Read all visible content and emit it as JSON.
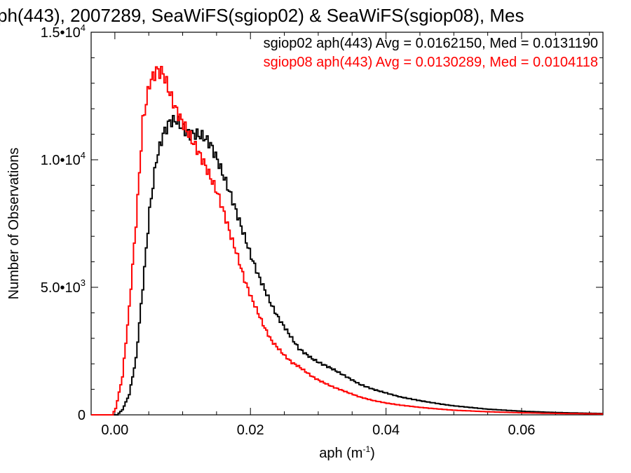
{
  "chart_data": {
    "type": "line",
    "title": "ph(443), 2007289, SeaWiFS(sgiop02) & SeaWiFS(sgiop08), Mes",
    "xlabel_base": "aph (m",
    "xlabel_sup": "-1",
    "xlabel_tail": ")",
    "ylabel": "Number of Observations",
    "xlim": [
      -0.0035,
      0.072
    ],
    "ylim": [
      0,
      15000
    ],
    "x_ticks": [
      0.0,
      0.02,
      0.04,
      0.06
    ],
    "x_tick_labels": [
      "0.00",
      "0.02",
      "0.04",
      "0.06"
    ],
    "y_tick_labels": [
      {
        "value": 0,
        "base": "0",
        "exp": ""
      },
      {
        "value": 5000,
        "base": "5.0•10",
        "exp": "3"
      },
      {
        "value": 10000,
        "base": "1.0•10",
        "exp": "4"
      },
      {
        "value": 15000,
        "base": "1.5•10",
        "exp": "4"
      }
    ],
    "grid": false,
    "legend_position": "top-right",
    "series": [
      {
        "name": "sgiop02 aph(443) Avg = 0.0162150, Med = 0.0131190",
        "color": "#000000",
        "points": [
          [
            -0.0035,
            0
          ],
          [
            0.0002,
            0
          ],
          [
            0.001,
            200
          ],
          [
            0.002,
            800
          ],
          [
            0.003,
            2200
          ],
          [
            0.004,
            5000
          ],
          [
            0.005,
            8000
          ],
          [
            0.006,
            10000
          ],
          [
            0.007,
            11000
          ],
          [
            0.008,
            11500
          ],
          [
            0.009,
            11550
          ],
          [
            0.01,
            11200
          ],
          [
            0.011,
            11000
          ],
          [
            0.012,
            11000
          ],
          [
            0.013,
            10900
          ],
          [
            0.014,
            10600
          ],
          [
            0.015,
            10000
          ],
          [
            0.016,
            9300
          ],
          [
            0.017,
            8600
          ],
          [
            0.018,
            7800
          ],
          [
            0.019,
            7000
          ],
          [
            0.02,
            6200
          ],
          [
            0.021,
            5500
          ],
          [
            0.022,
            4900
          ],
          [
            0.023,
            4300
          ],
          [
            0.024,
            3800
          ],
          [
            0.025,
            3400
          ],
          [
            0.026,
            3000
          ],
          [
            0.027,
            2600
          ],
          [
            0.028,
            2400
          ],
          [
            0.029,
            2200
          ],
          [
            0.03,
            2050
          ],
          [
            0.032,
            1800
          ],
          [
            0.034,
            1500
          ],
          [
            0.036,
            1200
          ],
          [
            0.038,
            1000
          ],
          [
            0.04,
            850
          ],
          [
            0.042,
            700
          ],
          [
            0.045,
            550
          ],
          [
            0.048,
            420
          ],
          [
            0.05,
            350
          ],
          [
            0.055,
            220
          ],
          [
            0.06,
            140
          ],
          [
            0.065,
            90
          ],
          [
            0.07,
            60
          ],
          [
            0.072,
            50
          ]
        ]
      },
      {
        "name": "sgiop08 aph(443) Avg = 0.0130289, Med = 0.0104118",
        "color": "#ff0000",
        "points": [
          [
            -0.0035,
            0
          ],
          [
            -0.0005,
            0
          ],
          [
            0.0,
            250
          ],
          [
            0.001,
            1500
          ],
          [
            0.002,
            4200
          ],
          [
            0.003,
            7500
          ],
          [
            0.004,
            11500
          ],
          [
            0.005,
            13000
          ],
          [
            0.006,
            13500
          ],
          [
            0.007,
            13400
          ],
          [
            0.008,
            12600
          ],
          [
            0.009,
            11900
          ],
          [
            0.01,
            11400
          ],
          [
            0.011,
            10900
          ],
          [
            0.012,
            10400
          ],
          [
            0.013,
            9900
          ],
          [
            0.014,
            9300
          ],
          [
            0.015,
            8700
          ],
          [
            0.016,
            7900
          ],
          [
            0.017,
            7000
          ],
          [
            0.018,
            6200
          ],
          [
            0.019,
            5300
          ],
          [
            0.02,
            4600
          ],
          [
            0.021,
            4000
          ],
          [
            0.022,
            3400
          ],
          [
            0.023,
            2900
          ],
          [
            0.024,
            2600
          ],
          [
            0.025,
            2300
          ],
          [
            0.026,
            2050
          ],
          [
            0.027,
            1900
          ],
          [
            0.028,
            1700
          ],
          [
            0.029,
            1500
          ],
          [
            0.03,
            1350
          ],
          [
            0.032,
            1100
          ],
          [
            0.034,
            900
          ],
          [
            0.036,
            700
          ],
          [
            0.038,
            560
          ],
          [
            0.04,
            460
          ],
          [
            0.042,
            380
          ],
          [
            0.045,
            290
          ],
          [
            0.048,
            220
          ],
          [
            0.05,
            180
          ],
          [
            0.055,
            120
          ],
          [
            0.06,
            80
          ],
          [
            0.065,
            55
          ],
          [
            0.07,
            40
          ],
          [
            0.072,
            35
          ]
        ]
      }
    ]
  }
}
